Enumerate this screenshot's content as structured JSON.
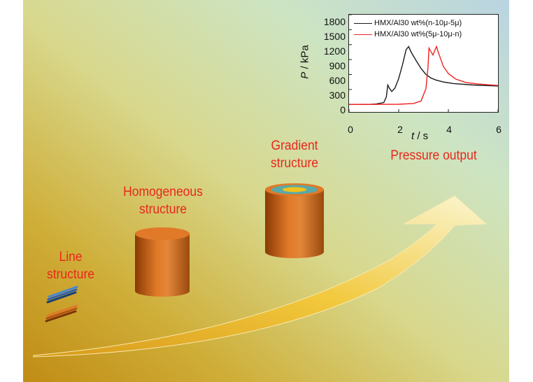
{
  "labels": {
    "line": [
      "Line",
      "structure"
    ],
    "homogeneous": [
      "Homogeneous",
      "structure"
    ],
    "gradient": [
      "Gradient",
      "structure"
    ],
    "pressure": "Pressure output"
  },
  "colors": {
    "label_red": "#e8271c",
    "cylinder_orange": "#d9701f",
    "series_black": "#1a1a1a",
    "series_red": "#ee2222",
    "gradient_ring": "#5aa9a8",
    "gradient_core": "#f2c21a"
  },
  "chart_data": {
    "type": "line",
    "xlabel_var": "t",
    "xlabel_unit": "/ s",
    "ylabel_var": "P",
    "ylabel_unit": "/ kPa",
    "xlim": [
      0,
      6
    ],
    "ylim": [
      -150,
      1800
    ],
    "xticks": [
      "0",
      "2",
      "4",
      "6"
    ],
    "yticks": [
      "0",
      "300",
      "600",
      "900",
      "1200",
      "1500",
      "1800"
    ],
    "legend_position": "top-right",
    "series": [
      {
        "name": "HMX/Al30 wt%(n-10μ-5μ)",
        "color": "#1a1a1a",
        "points": [
          [
            0,
            0
          ],
          [
            0.8,
            0
          ],
          [
            1.1,
            10
          ],
          [
            1.4,
            40
          ],
          [
            1.5,
            150
          ],
          [
            1.56,
            390
          ],
          [
            1.62,
            330
          ],
          [
            1.72,
            260
          ],
          [
            1.85,
            330
          ],
          [
            2.0,
            520
          ],
          [
            2.15,
            790
          ],
          [
            2.3,
            1100
          ],
          [
            2.4,
            1160
          ],
          [
            2.5,
            1050
          ],
          [
            2.7,
            880
          ],
          [
            2.9,
            720
          ],
          [
            3.1,
            600
          ],
          [
            3.3,
            530
          ],
          [
            3.5,
            490
          ],
          [
            3.8,
            450
          ],
          [
            4.2,
            420
          ],
          [
            5.0,
            390
          ],
          [
            6.0,
            370
          ]
        ]
      },
      {
        "name": "HMX/Al30 wt%(5μ-10μ-n)",
        "color": "#ee2222",
        "points": [
          [
            0,
            0
          ],
          [
            2.0,
            5
          ],
          [
            2.6,
            20
          ],
          [
            2.9,
            70
          ],
          [
            3.1,
            320
          ],
          [
            3.18,
            750
          ],
          [
            3.22,
            1130
          ],
          [
            3.3,
            1060
          ],
          [
            3.38,
            990
          ],
          [
            3.45,
            1080
          ],
          [
            3.52,
            1160
          ],
          [
            3.6,
            1040
          ],
          [
            3.8,
            760
          ],
          [
            4.0,
            620
          ],
          [
            4.3,
            510
          ],
          [
            4.7,
            440
          ],
          [
            5.2,
            410
          ],
          [
            6.0,
            380
          ]
        ]
      }
    ]
  }
}
